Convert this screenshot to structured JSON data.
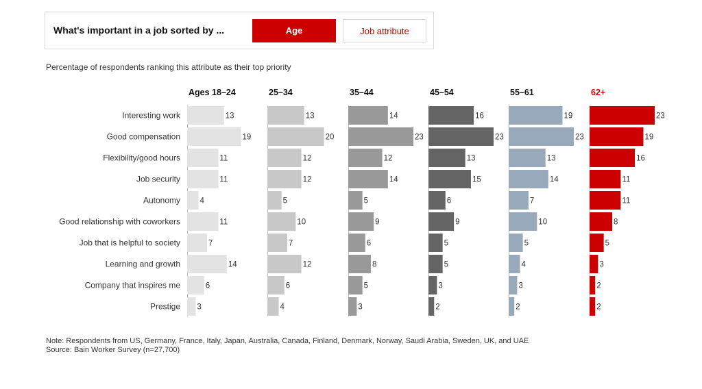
{
  "sort_control": {
    "title": "What's important in a job sorted by ...",
    "active_label": "Age",
    "inactive_label": "Job attribute"
  },
  "subtitle": "Percentage of respondents ranking this attribute as their top priority",
  "chart_data": {
    "type": "bar",
    "orientation": "horizontal-small-multiples",
    "title": "What's important in a job sorted by ...",
    "subtitle": "Percentage of respondents ranking this attribute as their top priority",
    "categories": [
      "Interesting work",
      "Good compensation",
      "Flexibility/good hours",
      "Job security",
      "Autonomy",
      "Good relationship with coworkers",
      "Job that is helpful to society",
      "Learning and growth",
      "Company that inspires me",
      "Prestige"
    ],
    "series": [
      {
        "name": "Ages 18–24",
        "color": "#e3e3e3",
        "values": [
          13,
          19,
          11,
          11,
          4,
          11,
          7,
          14,
          6,
          3
        ]
      },
      {
        "name": "25–34",
        "color": "#c8c8c8",
        "values": [
          13,
          20,
          12,
          12,
          5,
          10,
          7,
          12,
          6,
          4
        ]
      },
      {
        "name": "35–44",
        "color": "#999999",
        "values": [
          14,
          23,
          12,
          14,
          5,
          9,
          6,
          8,
          5,
          3
        ]
      },
      {
        "name": "45–54",
        "color": "#646464",
        "values": [
          16,
          23,
          13,
          15,
          6,
          9,
          5,
          5,
          3,
          2
        ]
      },
      {
        "name": "55–61",
        "color": "#97a9ba",
        "values": [
          19,
          23,
          13,
          14,
          7,
          10,
          5,
          4,
          3,
          2
        ]
      },
      {
        "name": "62+",
        "color": "#cc0000",
        "values": [
          23,
          19,
          16,
          11,
          11,
          8,
          5,
          3,
          2,
          2
        ]
      }
    ],
    "highlight_series": "62+",
    "highlight_color": "#cc0000",
    "xlim": [
      0,
      23
    ],
    "grid": false
  },
  "footnotes": {
    "note": "Note: Respondents from US, Germany, France, Italy, Japan, Australia, Canada, Finland, Denmark, Norway, Saudi Arabia, Sweden, UK, and UAE",
    "source": "Source: Bain Worker Survey (n=27,700)"
  }
}
